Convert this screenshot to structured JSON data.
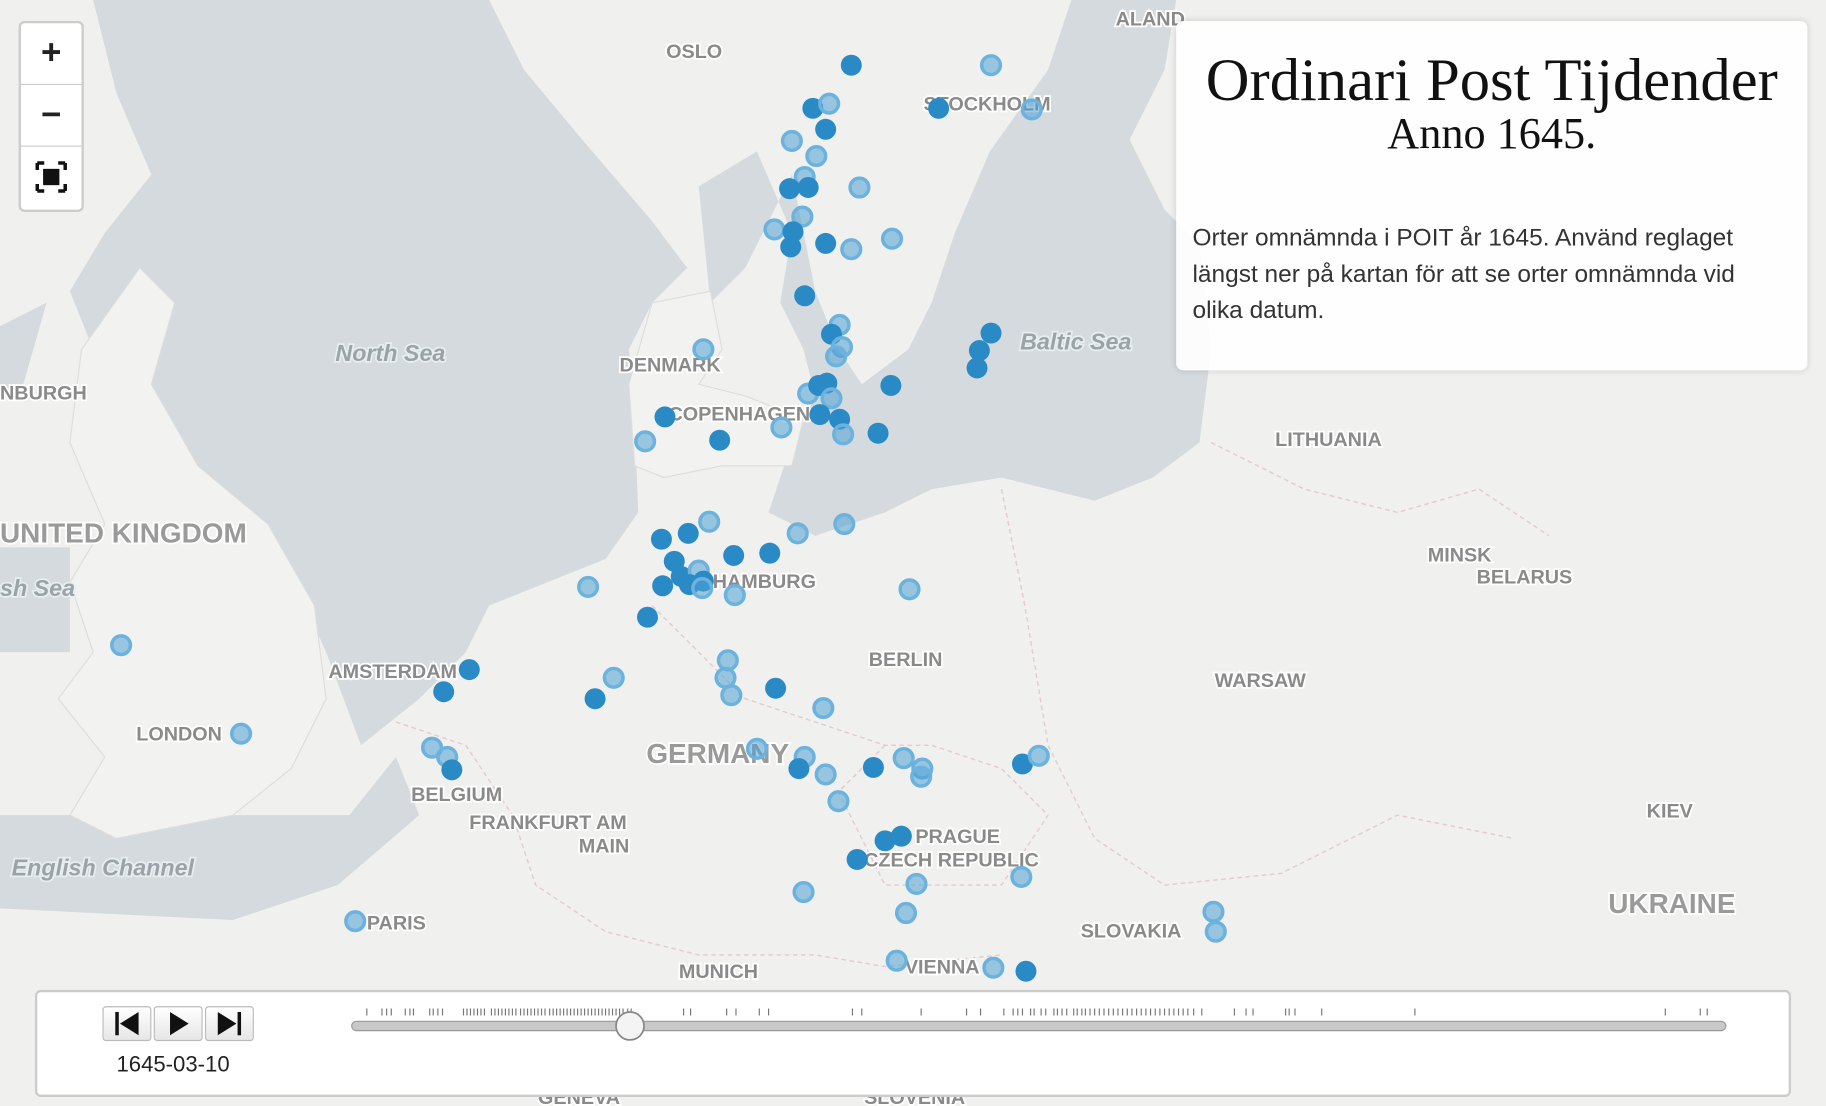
{
  "map": {
    "labels": [
      "OSLO",
      "STOCKHOLM",
      "ALAND",
      "North Sea",
      "Baltic Sea",
      "DENMARK",
      "COPENHAGEN",
      "NBURGH",
      "UNITED KINGDOM",
      "sh Sea",
      "LITHUANIA",
      "MINSK",
      "BELARUS",
      "HAMBURG",
      "BERLIN",
      "WARSAW",
      "AMSTERDAM",
      "LONDON",
      "GERMANY",
      "BELGIUM",
      "FRANKFURT AM",
      "MAIN",
      "PRAGUE",
      "CZECH REPUBLIC",
      "English Channel",
      "PARIS",
      "SLOVAKIA",
      "UKRAINE",
      "KIEV",
      "MUNICH",
      "VIENNA",
      "GENEVA",
      "SLOVENIA"
    ]
  },
  "controls": {
    "zoom_in": "+",
    "zoom_out": "−"
  },
  "panel": {
    "title": "Ordinari Post Tijdender",
    "subtitle": "Anno 1645.",
    "description": "Orter omnämnda i POIT år 1645. Använd reglaget längst ner på kartan för att se orter omnämnda vid olika datum."
  },
  "timeline": {
    "date": "1645-03-10"
  }
}
